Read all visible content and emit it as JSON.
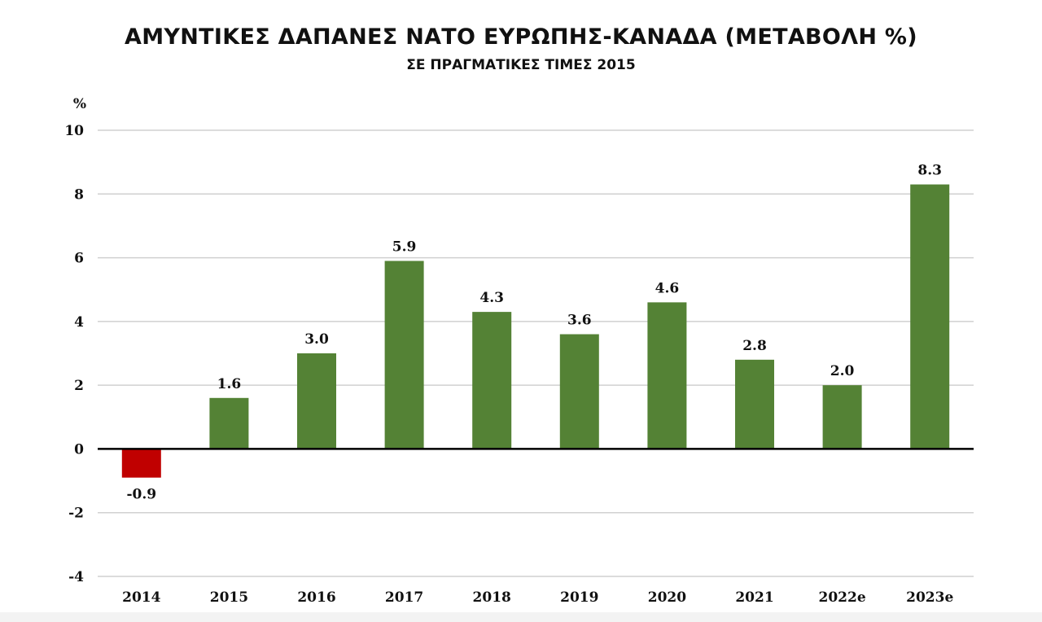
{
  "chart_data": {
    "type": "bar",
    "title": "ΑΜΥΝΤΙΚΕΣ ΔΑΠΑΝΕΣ ΝΑΤΟ ΕΥΡΩΠΗΣ-ΚΑΝΑΔΑ (ΜΕΤΑΒΟΛΗ %)",
    "subtitle": "ΣΕ ΠΡΑΓΜΑΤΙΚΕΣ ΤΙΜΕΣ 2015",
    "ylabel": "%",
    "xlabel": "",
    "categories": [
      "2014",
      "2015",
      "2016",
      "2017",
      "2018",
      "2019",
      "2020",
      "2021",
      "2022e",
      "2023e"
    ],
    "values": [
      -0.9,
      1.6,
      3.0,
      5.9,
      4.3,
      3.6,
      4.6,
      2.8,
      2.0,
      8.3
    ],
    "value_labels": [
      "-0.9",
      "1.6",
      "3.0",
      "5.9",
      "4.3",
      "3.6",
      "4.6",
      "2.8",
      "2.0",
      "8.3"
    ],
    "ylim": [
      -4,
      10
    ],
    "yticks": [
      "-4",
      "-2",
      "0",
      "2",
      "4",
      "6",
      "8",
      "10"
    ],
    "grid": true,
    "colors": {
      "positive": "#548235",
      "negative": "#c00000",
      "grid": "#d0d0d0",
      "axis": "#000000"
    }
  }
}
